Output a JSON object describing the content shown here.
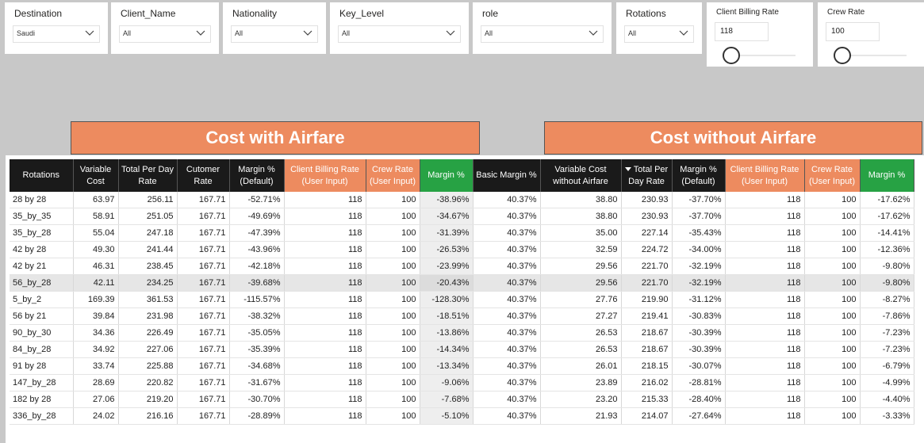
{
  "filters": [
    {
      "label": "Destination",
      "value": "Saudi"
    },
    {
      "label": "Client_Name",
      "value": "All"
    },
    {
      "label": "Nationality",
      "value": "All"
    },
    {
      "label": "Key_Level",
      "value": "All"
    },
    {
      "label": "role",
      "value": "All"
    },
    {
      "label": "Rotations",
      "value": "All"
    }
  ],
  "numeric_filters": [
    {
      "label": "Client Billing Rate",
      "value": "118"
    },
    {
      "label": "Crew Rate",
      "value": "100"
    }
  ],
  "banners": {
    "with_airfare": "Cost with Airfare",
    "without_airfare": "Cost without Airfare"
  },
  "columns": [
    {
      "label": "Rotations"
    },
    {
      "label": "Variable Cost"
    },
    {
      "label": "Total Per Day Rate"
    },
    {
      "label": "Cutomer Rate"
    },
    {
      "label": "Margin % (Default)"
    },
    {
      "label": "Client Billing Rate (User Input)"
    },
    {
      "label": "Crew Rate (User Input)"
    },
    {
      "label": "Margin %"
    },
    {
      "label": "Basic Margin %"
    },
    {
      "label": "Variable Cost without Airfare"
    },
    {
      "label": "Total Per Day Rate"
    },
    {
      "label": "Margin % (Default)"
    },
    {
      "label": "Client Billing Rate (User Input)"
    },
    {
      "label": "Crew Rate (User Input)"
    },
    {
      "label": "Margin %"
    }
  ],
  "rows": [
    [
      "28 by 28",
      "63.97",
      "256.11",
      "167.71",
      "-52.71%",
      "118",
      "100",
      "-38.96%",
      "40.37%",
      "38.80",
      "230.93",
      "-37.70%",
      "118",
      "100",
      "-17.62%"
    ],
    [
      "35_by_35",
      "58.91",
      "251.05",
      "167.71",
      "-49.69%",
      "118",
      "100",
      "-34.67%",
      "40.37%",
      "38.80",
      "230.93",
      "-37.70%",
      "118",
      "100",
      "-17.62%"
    ],
    [
      "35_by_28",
      "55.04",
      "247.18",
      "167.71",
      "-47.39%",
      "118",
      "100",
      "-31.39%",
      "40.37%",
      "35.00",
      "227.14",
      "-35.43%",
      "118",
      "100",
      "-14.41%"
    ],
    [
      "42 by 28",
      "49.30",
      "241.44",
      "167.71",
      "-43.96%",
      "118",
      "100",
      "-26.53%",
      "40.37%",
      "32.59",
      "224.72",
      "-34.00%",
      "118",
      "100",
      "-12.36%"
    ],
    [
      "42 by 21",
      "46.31",
      "238.45",
      "167.71",
      "-42.18%",
      "118",
      "100",
      "-23.99%",
      "40.37%",
      "29.56",
      "221.70",
      "-32.19%",
      "118",
      "100",
      "-9.80%"
    ],
    [
      "56_by_28",
      "42.11",
      "234.25",
      "167.71",
      "-39.68%",
      "118",
      "100",
      "-20.43%",
      "40.37%",
      "29.56",
      "221.70",
      "-32.19%",
      "118",
      "100",
      "-9.80%"
    ],
    [
      "5_by_2",
      "169.39",
      "361.53",
      "167.71",
      "-115.57%",
      "118",
      "100",
      "-128.30%",
      "40.37%",
      "27.76",
      "219.90",
      "-31.12%",
      "118",
      "100",
      "-8.27%"
    ],
    [
      "56 by 21",
      "39.84",
      "231.98",
      "167.71",
      "-38.32%",
      "118",
      "100",
      "-18.51%",
      "40.37%",
      "27.27",
      "219.41",
      "-30.83%",
      "118",
      "100",
      "-7.86%"
    ],
    [
      "90_by_30",
      "34.36",
      "226.49",
      "167.71",
      "-35.05%",
      "118",
      "100",
      "-13.86%",
      "40.37%",
      "26.53",
      "218.67",
      "-30.39%",
      "118",
      "100",
      "-7.23%"
    ],
    [
      "84_by_28",
      "34.92",
      "227.06",
      "167.71",
      "-35.39%",
      "118",
      "100",
      "-14.34%",
      "40.37%",
      "26.53",
      "218.67",
      "-30.39%",
      "118",
      "100",
      "-7.23%"
    ],
    [
      "91 by 28",
      "33.74",
      "225.88",
      "167.71",
      "-34.68%",
      "118",
      "100",
      "-13.34%",
      "40.37%",
      "26.01",
      "218.15",
      "-30.07%",
      "118",
      "100",
      "-6.79%"
    ],
    [
      "147_by_28",
      "28.69",
      "220.82",
      "167.71",
      "-31.67%",
      "118",
      "100",
      "-9.06%",
      "40.37%",
      "23.89",
      "216.02",
      "-28.81%",
      "118",
      "100",
      "-4.99%"
    ],
    [
      "182 by 28",
      "27.06",
      "219.20",
      "167.71",
      "-30.70%",
      "118",
      "100",
      "-7.68%",
      "40.37%",
      "23.20",
      "215.33",
      "-28.40%",
      "118",
      "100",
      "-4.40%"
    ],
    [
      "336_by_28",
      "24.02",
      "216.16",
      "167.71",
      "-28.89%",
      "118",
      "100",
      "-5.10%",
      "40.37%",
      "21.93",
      "214.07",
      "-27.64%",
      "118",
      "100",
      "-3.33%"
    ]
  ],
  "highlighted_row": 5,
  "sorted_column": 10
}
